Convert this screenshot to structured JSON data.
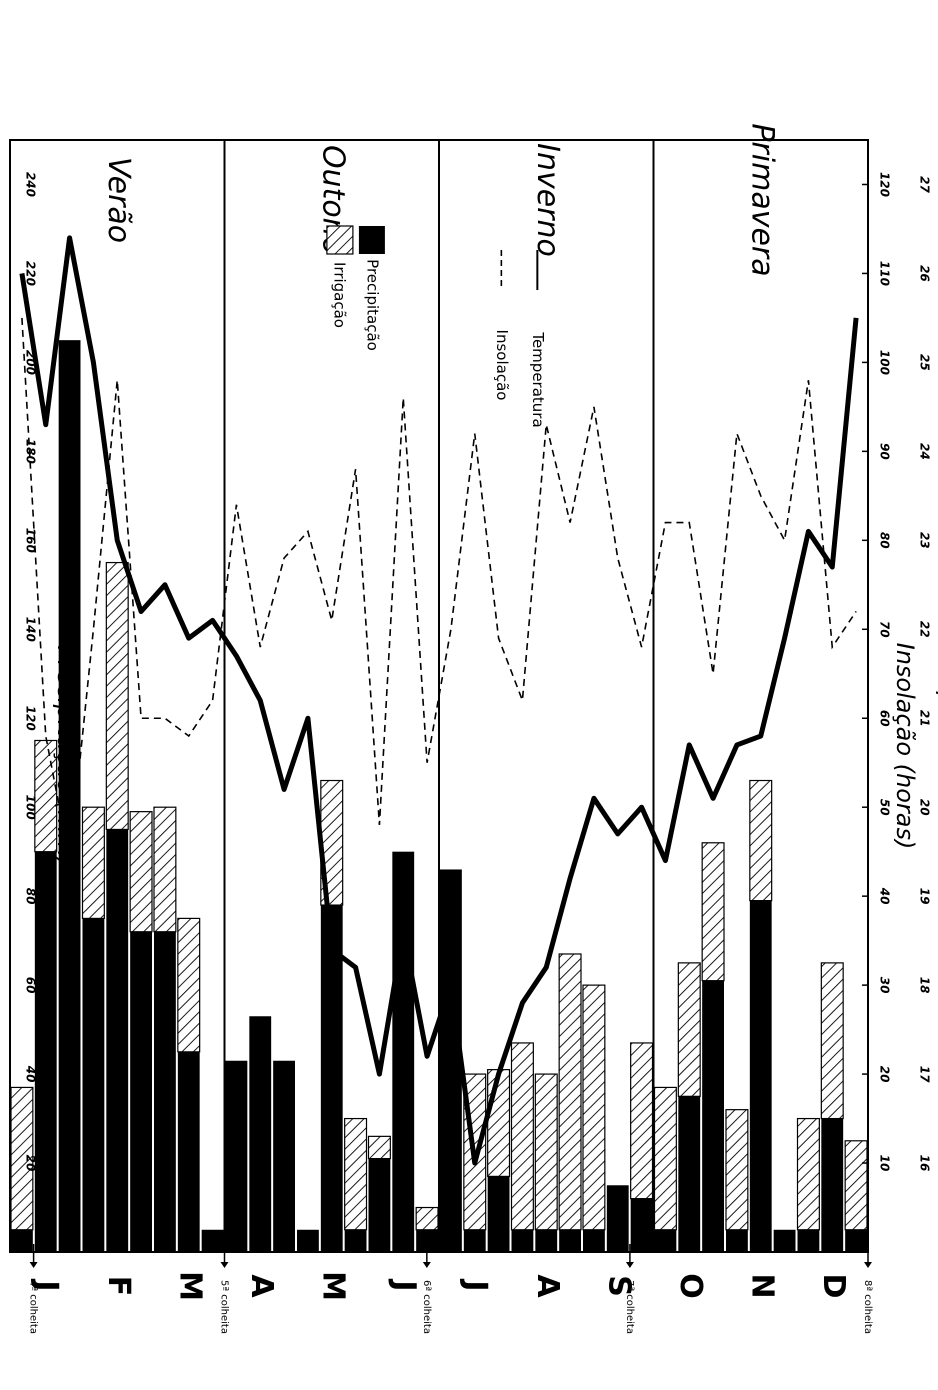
{
  "chart_data": {
    "type": "bar",
    "orientation": "rotated-90-clockwise",
    "y_left": {
      "label": "Precipitação (mm)",
      "ticks": [
        20,
        40,
        60,
        80,
        100,
        120,
        140,
        160,
        180,
        200,
        220,
        240
      ],
      "range": [
        0,
        250
      ]
    },
    "y_right_insolation": {
      "label": "Insolação (horas)",
      "ticks": [
        10,
        20,
        30,
        40,
        50,
        60,
        70,
        80,
        90,
        100,
        110,
        120
      ],
      "range": [
        0,
        125
      ]
    },
    "y_right_temperature": {
      "label": "Temperatura (°C)",
      "ticks": [
        16,
        17,
        18,
        19,
        20,
        21,
        22,
        23,
        24,
        25,
        26,
        27
      ],
      "range": [
        15,
        27.5
      ]
    },
    "months": [
      "J",
      "F",
      "M",
      "A",
      "M",
      "J",
      "J",
      "A",
      "S",
      "O",
      "N",
      "D"
    ],
    "seasons": [
      {
        "label": "Verão",
        "start": 0,
        "end": 3
      },
      {
        "label": "Outono",
        "start": 3,
        "end": 6
      },
      {
        "label": "Inverno",
        "start": 6,
        "end": 9
      },
      {
        "label": "Primavera",
        "start": 9,
        "end": 12
      }
    ],
    "harvests": [
      {
        "label": "4ª colheita",
        "position": 0.33
      },
      {
        "label": "5ª colheita",
        "position": 3.0
      },
      {
        "label": "6ª colheita",
        "position": 5.83
      },
      {
        "label": "7ª colheita",
        "position": 8.67
      },
      {
        "label": "8ª colheita",
        "position": 12.0
      }
    ],
    "periods": 36,
    "series": [
      {
        "name": "Precipitação",
        "unit": "mm",
        "values": [
          5,
          90,
          205,
          75,
          95,
          72,
          72,
          45,
          5,
          43,
          53,
          43,
          5,
          78,
          5,
          21,
          90,
          5,
          86,
          5,
          17,
          5,
          5,
          5,
          5,
          15,
          12,
          5,
          35,
          61,
          5,
          79,
          5,
          5,
          30,
          5
        ]
      },
      {
        "name": "Irrigação",
        "unit": "mm",
        "values": [
          32,
          25,
          0,
          25,
          60,
          27,
          28,
          30,
          0,
          0,
          0,
          0,
          0,
          28,
          25,
          5,
          0,
          5,
          0,
          35,
          24,
          42,
          35,
          62,
          55,
          0,
          35,
          32,
          30,
          31,
          27,
          27,
          0,
          25,
          35,
          20
        ]
      },
      {
        "name": "Insolação",
        "unit": "horas",
        "values": [
          105,
          58,
          44,
          70,
          98,
          60,
          60,
          58,
          62,
          84,
          68,
          78,
          81,
          71,
          88,
          48,
          96,
          55,
          70,
          92,
          69,
          62,
          93,
          82,
          95,
          78,
          68,
          82,
          82,
          65,
          92,
          85,
          80,
          98,
          68,
          72
        ]
      },
      {
        "name": "Temperatura",
        "unit": "°C",
        "values": [
          26.0,
          24.3,
          26.4,
          25.0,
          23.0,
          22.2,
          22.5,
          21.9,
          22.1,
          21.7,
          21.2,
          20.2,
          21.0,
          18.4,
          18.2,
          17.0,
          18.6,
          17.2,
          18.0,
          16.0,
          17.0,
          17.8,
          18.2,
          19.2,
          20.1,
          19.7,
          20.0,
          19.4,
          20.7,
          20.1,
          20.7,
          20.8,
          21.9,
          23.1,
          22.7,
          25.5
        ]
      }
    ],
    "legend": {
      "bars": [
        "Irrigação",
        "Precipitação"
      ],
      "lines": [
        "Insolação",
        "Temperatura"
      ],
      "placement": "in-plot"
    }
  }
}
